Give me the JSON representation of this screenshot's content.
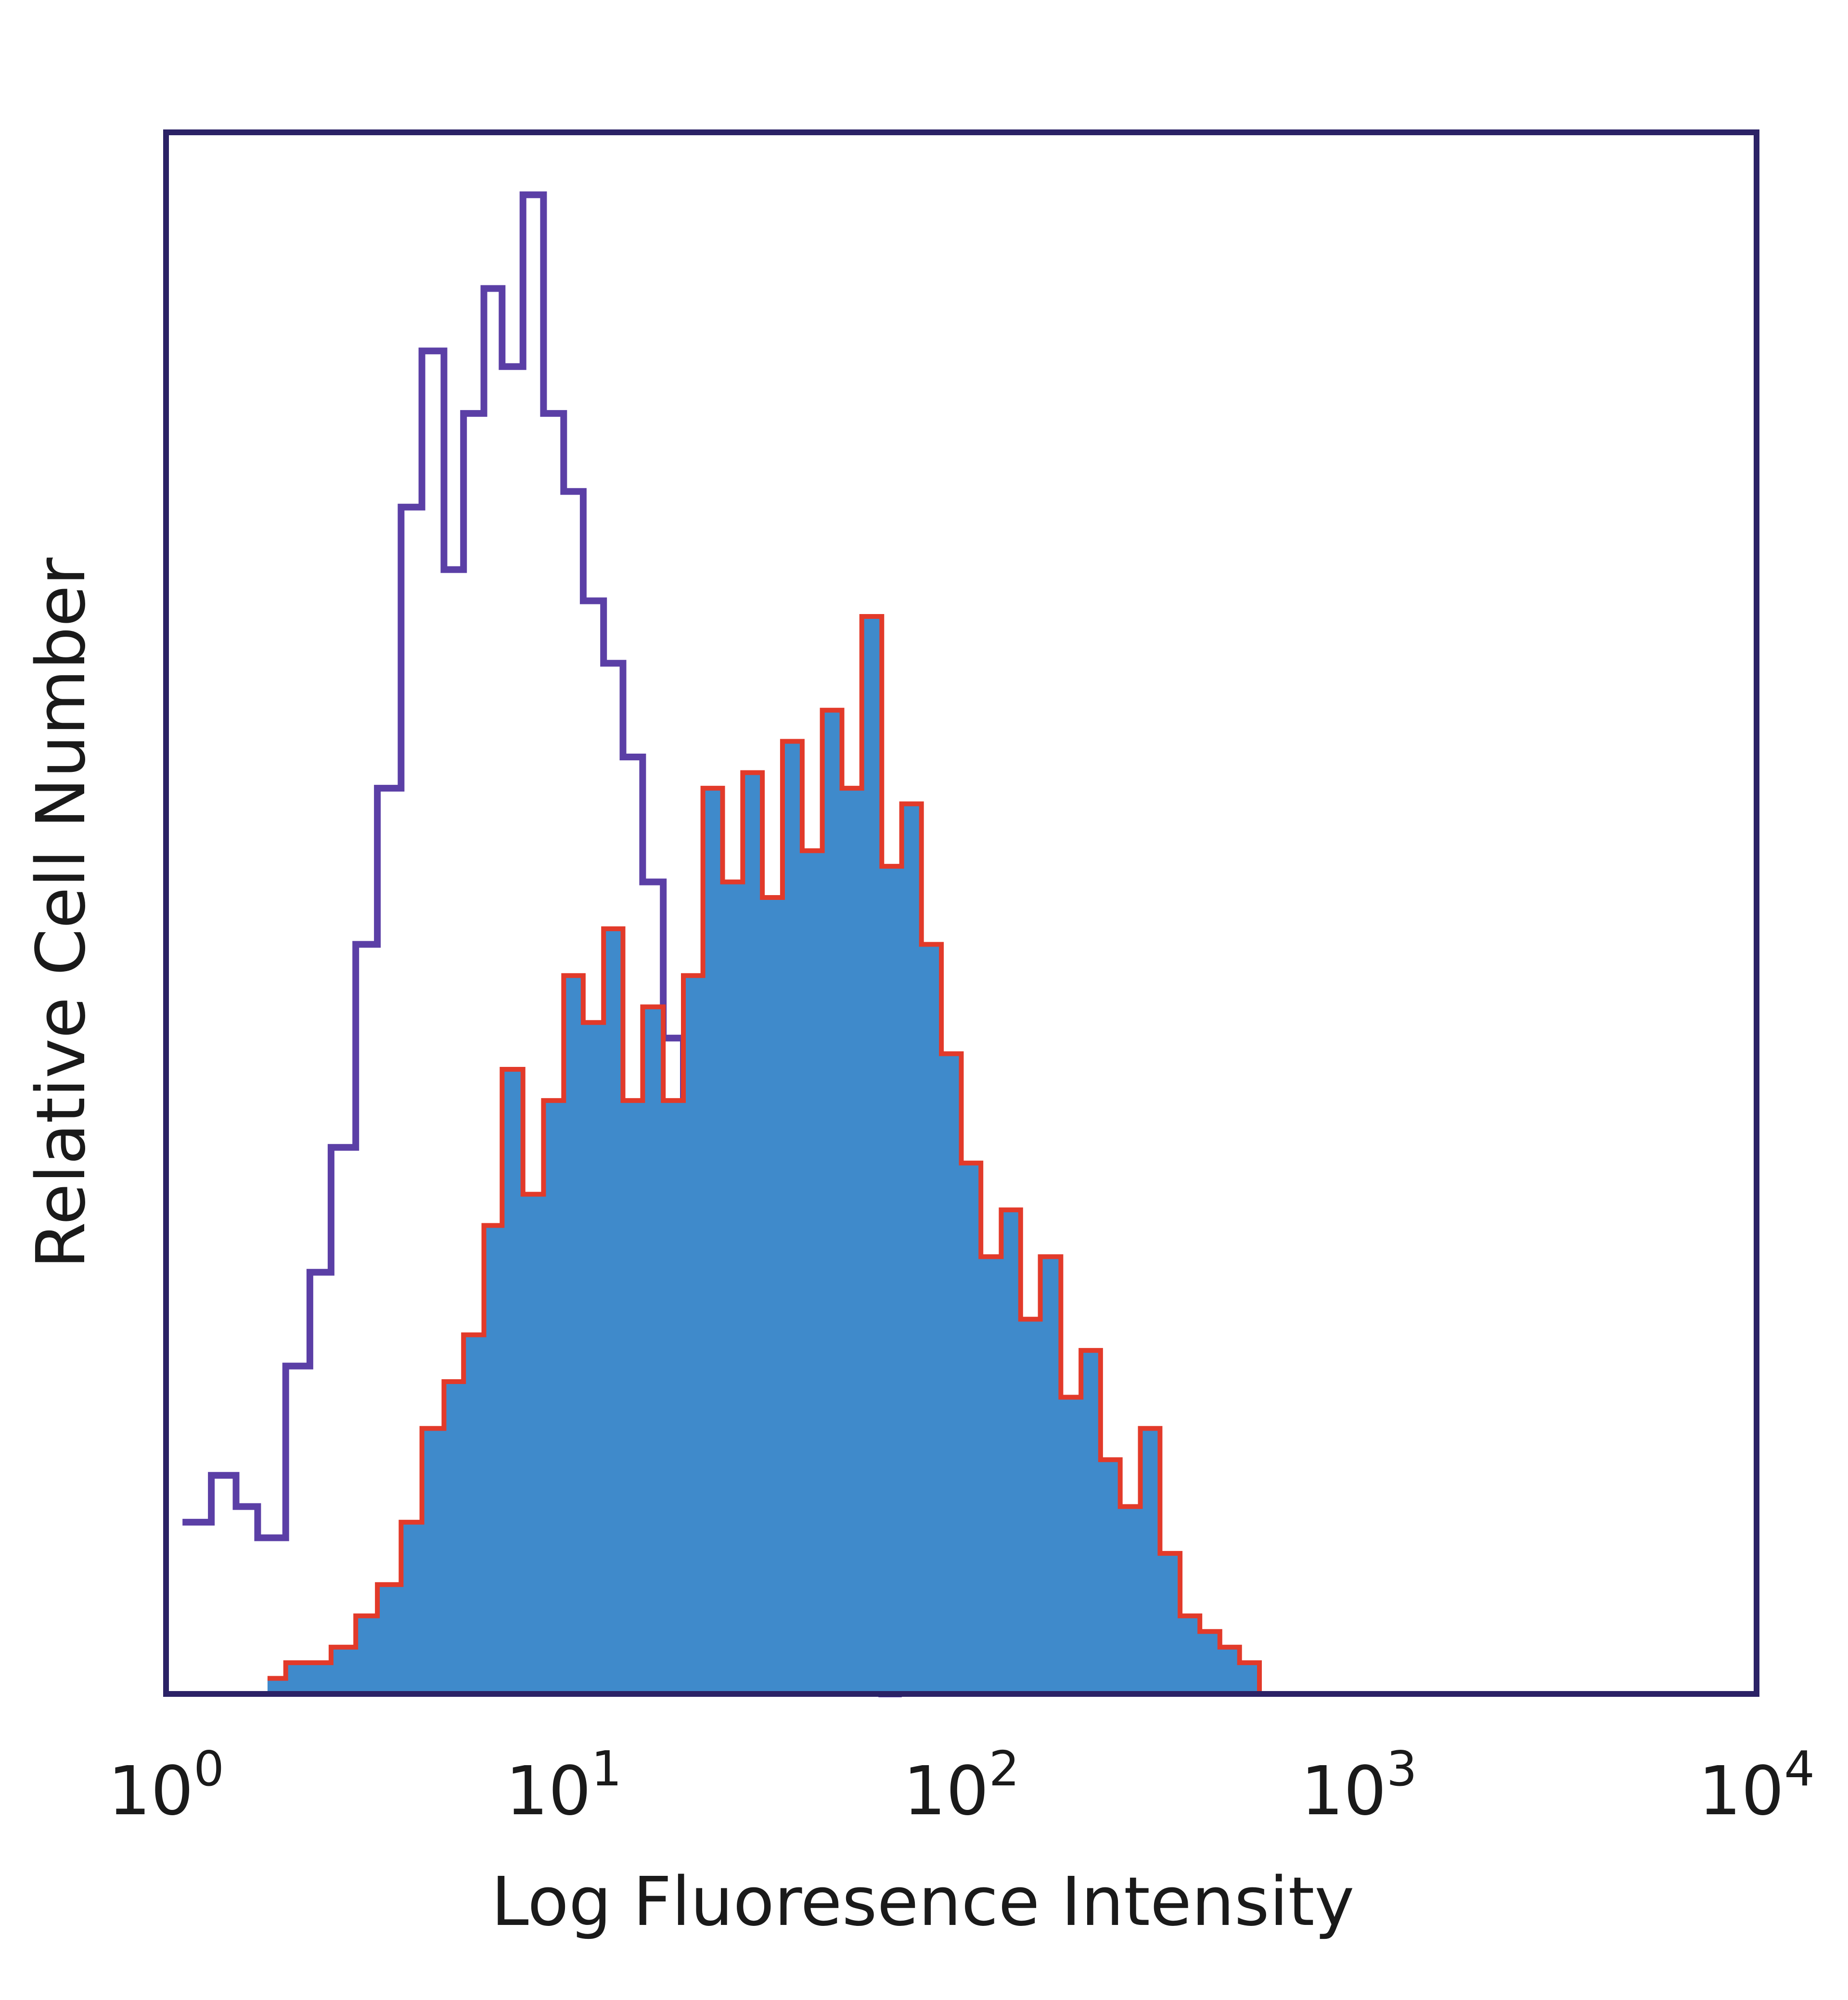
{
  "chart_data": {
    "type": "area",
    "title": "",
    "xlabel": "Log Fluoresence Intensity",
    "ylabel": "Relative Cell Number",
    "x_scale": "log",
    "xlim": [
      1,
      10000
    ],
    "ylim": [
      0,
      100
    ],
    "x_ticks": [
      {
        "base": "10",
        "exp": "0"
      },
      {
        "base": "10",
        "exp": "1"
      },
      {
        "base": "10",
        "exp": "2"
      },
      {
        "base": "10",
        "exp": "3"
      },
      {
        "base": "10",
        "exp": "4"
      }
    ],
    "grid": false,
    "legend": "none",
    "colors": {
      "control": "#5b3fa6",
      "stained_fill": "#3f8acb",
      "stained_outline": "#e23a2a",
      "frame": "#2b2266"
    },
    "series": [
      {
        "style": "outline",
        "x": [
          1.1,
          1.3,
          1.5,
          1.7,
          2.0,
          2.3,
          2.6,
          3.0,
          3.4,
          3.9,
          4.4,
          5.0,
          5.6,
          6.3,
          7.0,
          7.9,
          8.9,
          10,
          11.2,
          12.6,
          14.1,
          15.8,
          17.8,
          20,
          22.4,
          25.1,
          28.2,
          31.6,
          35.5,
          39.8,
          44.7,
          50.1,
          56.2,
          63.1
        ],
        "y": [
          11,
          14,
          12,
          10,
          21,
          27,
          35,
          48,
          58,
          76,
          86,
          72,
          82,
          90,
          85,
          96,
          82,
          77,
          70,
          66,
          60,
          52,
          42,
          31,
          24,
          17,
          12,
          8,
          5,
          3,
          2,
          1.5,
          1,
          0
        ]
      },
      {
        "style": "filled",
        "x": [
          1.8,
          2.0,
          2.3,
          2.6,
          3.0,
          3.4,
          3.9,
          4.4,
          5.0,
          5.6,
          6.3,
          7.0,
          7.9,
          8.9,
          10,
          11.2,
          12.6,
          14.1,
          15.8,
          17.8,
          20,
          22.4,
          25.1,
          28.2,
          31.6,
          35.5,
          39.8,
          44.7,
          50.1,
          56.2,
          63.1,
          70.8,
          79.4,
          89.1,
          100,
          112,
          126,
          141,
          158,
          178,
          200,
          224,
          251,
          282,
          316,
          355,
          398,
          447,
          501,
          562
        ],
        "y": [
          1,
          2,
          2,
          3,
          5,
          7,
          11,
          17,
          20,
          23,
          30,
          40,
          32,
          38,
          46,
          43,
          49,
          38,
          44,
          38,
          46,
          58,
          52,
          59,
          51,
          61,
          54,
          63,
          58,
          69,
          53,
          57,
          48,
          41,
          34,
          28,
          31,
          24,
          28,
          19,
          22,
          15,
          12,
          17,
          9,
          5,
          4,
          3,
          2,
          0
        ]
      }
    ]
  }
}
